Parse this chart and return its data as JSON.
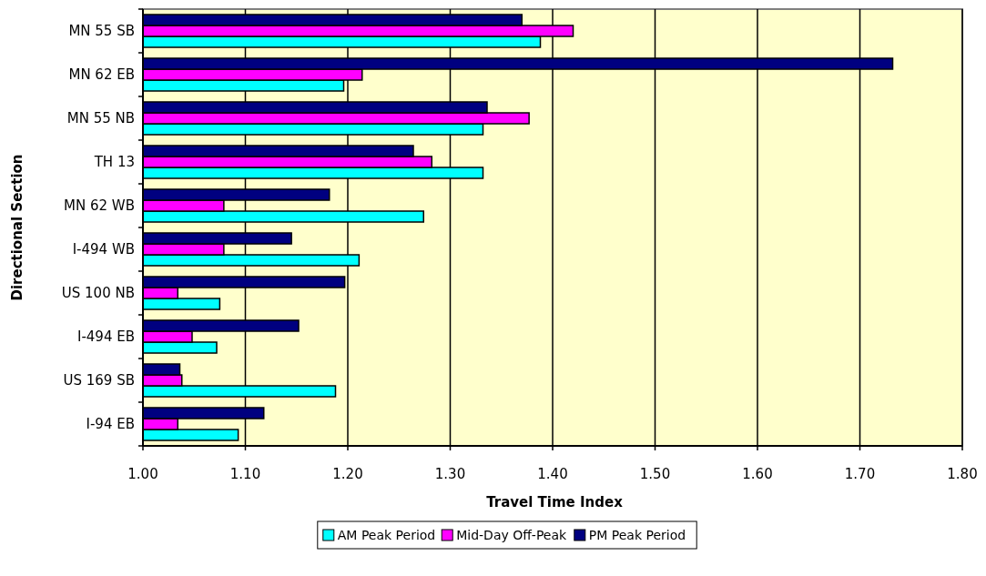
{
  "chart_data": {
    "type": "bar",
    "orientation": "horizontal",
    "xlabel": "Travel Time Index",
    "ylabel": "Directional Section",
    "categories": [
      "MN 55 SB",
      "MN 62 EB",
      "MN 55 NB",
      "TH 13",
      "MN 62 WB",
      "I-494 WB",
      "US 100 NB",
      "I-494 EB",
      "US 169 SB",
      "I-94 EB"
    ],
    "series": [
      {
        "name": "AM Peak Period",
        "color": "#00ffff",
        "values": [
          1.388,
          1.196,
          1.332,
          1.332,
          1.274,
          1.211,
          1.075,
          1.072,
          1.188,
          1.093
        ]
      },
      {
        "name": "Mid-Day Off-Peak",
        "color": "#ff00ff",
        "values": [
          1.42,
          1.214,
          1.377,
          1.282,
          1.079,
          1.079,
          1.034,
          1.048,
          1.038,
          1.034
        ]
      },
      {
        "name": "PM Peak Period",
        "color": "#000080",
        "values": [
          1.37,
          1.732,
          1.336,
          1.264,
          1.182,
          1.145,
          1.197,
          1.152,
          1.036,
          1.118
        ]
      }
    ],
    "xlim": [
      1.0,
      1.8
    ],
    "xticks": [
      {
        "value": 1.0,
        "label": "1.00"
      },
      {
        "value": 1.1,
        "label": "1.10"
      },
      {
        "value": 1.2,
        "label": "1.20"
      },
      {
        "value": 1.3,
        "label": "1.30"
      },
      {
        "value": 1.4,
        "label": "1.40"
      },
      {
        "value": 1.5,
        "label": "1.50"
      },
      {
        "value": 1.6,
        "label": "1.60"
      },
      {
        "value": 1.7,
        "label": "1.70"
      },
      {
        "value": 1.8,
        "label": "1.80"
      }
    ],
    "grid": "x",
    "legend": "bottom"
  }
}
